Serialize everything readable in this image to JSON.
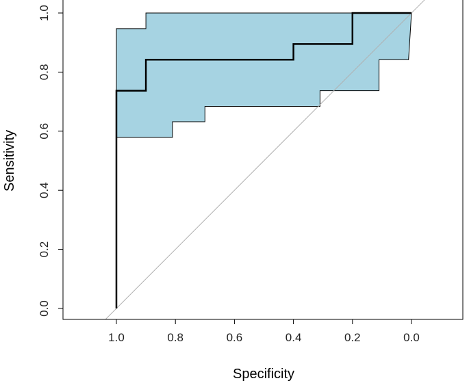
{
  "chart_data": {
    "type": "line",
    "title": "",
    "xlabel": "Specificity",
    "ylabel": "Sensitivity",
    "xlim": [
      1.2,
      -0.2
    ],
    "ylim": [
      -0.02,
      1.02
    ],
    "x_reversed": true,
    "x_ticks": [
      1.0,
      0.8,
      0.6,
      0.4,
      0.2,
      0.0
    ],
    "x_tick_labels": [
      "1.0",
      "0.8",
      "0.6",
      "0.4",
      "0.2",
      "0.0"
    ],
    "y_ticks": [
      0.0,
      0.2,
      0.4,
      0.6,
      0.8,
      1.0
    ],
    "y_tick_labels": [
      "0.0",
      "0.2",
      "0.4",
      "0.6",
      "0.8",
      "1.0"
    ],
    "grid": false,
    "colors": {
      "band_fill": "#a6d3e2",
      "band_outline": "#000000",
      "roc_line": "#000000",
      "diagonal": "#b0b0b0",
      "axes": "#000000"
    },
    "confidence_band": {
      "upper": [
        {
          "x": 1.0,
          "y": 0.0
        },
        {
          "x": 1.0,
          "y": 0.947
        },
        {
          "x": 0.9,
          "y": 0.947
        },
        {
          "x": 0.9,
          "y": 1.0
        },
        {
          "x": 0.0,
          "y": 1.0
        }
      ],
      "lower": [
        {
          "x": 1.0,
          "y": 0.0
        },
        {
          "x": 1.0,
          "y": 0.579
        },
        {
          "x": 0.81,
          "y": 0.579
        },
        {
          "x": 0.81,
          "y": 0.632
        },
        {
          "x": 0.7,
          "y": 0.632
        },
        {
          "x": 0.7,
          "y": 0.684
        },
        {
          "x": 0.31,
          "y": 0.684
        },
        {
          "x": 0.31,
          "y": 0.737
        },
        {
          "x": 0.11,
          "y": 0.737
        },
        {
          "x": 0.11,
          "y": 0.842
        },
        {
          "x": 0.01,
          "y": 0.842
        },
        {
          "x": 0.0,
          "y": 1.0
        }
      ]
    },
    "series": [
      {
        "points": [
          {
            "x": 1.0,
            "y": 0.0
          },
          {
            "x": 1.0,
            "y": 0.737
          },
          {
            "x": 0.9,
            "y": 0.737
          },
          {
            "x": 0.9,
            "y": 0.842
          },
          {
            "x": 0.4,
            "y": 0.842
          },
          {
            "x": 0.4,
            "y": 0.895
          },
          {
            "x": 0.2,
            "y": 0.895
          },
          {
            "x": 0.2,
            "y": 1.0
          },
          {
            "x": 0.0,
            "y": 1.0
          }
        ]
      }
    ],
    "reference_line": {
      "from": {
        "x": 1.2,
        "y": -0.2
      },
      "to": {
        "x": -0.2,
        "y": 1.2
      }
    }
  }
}
